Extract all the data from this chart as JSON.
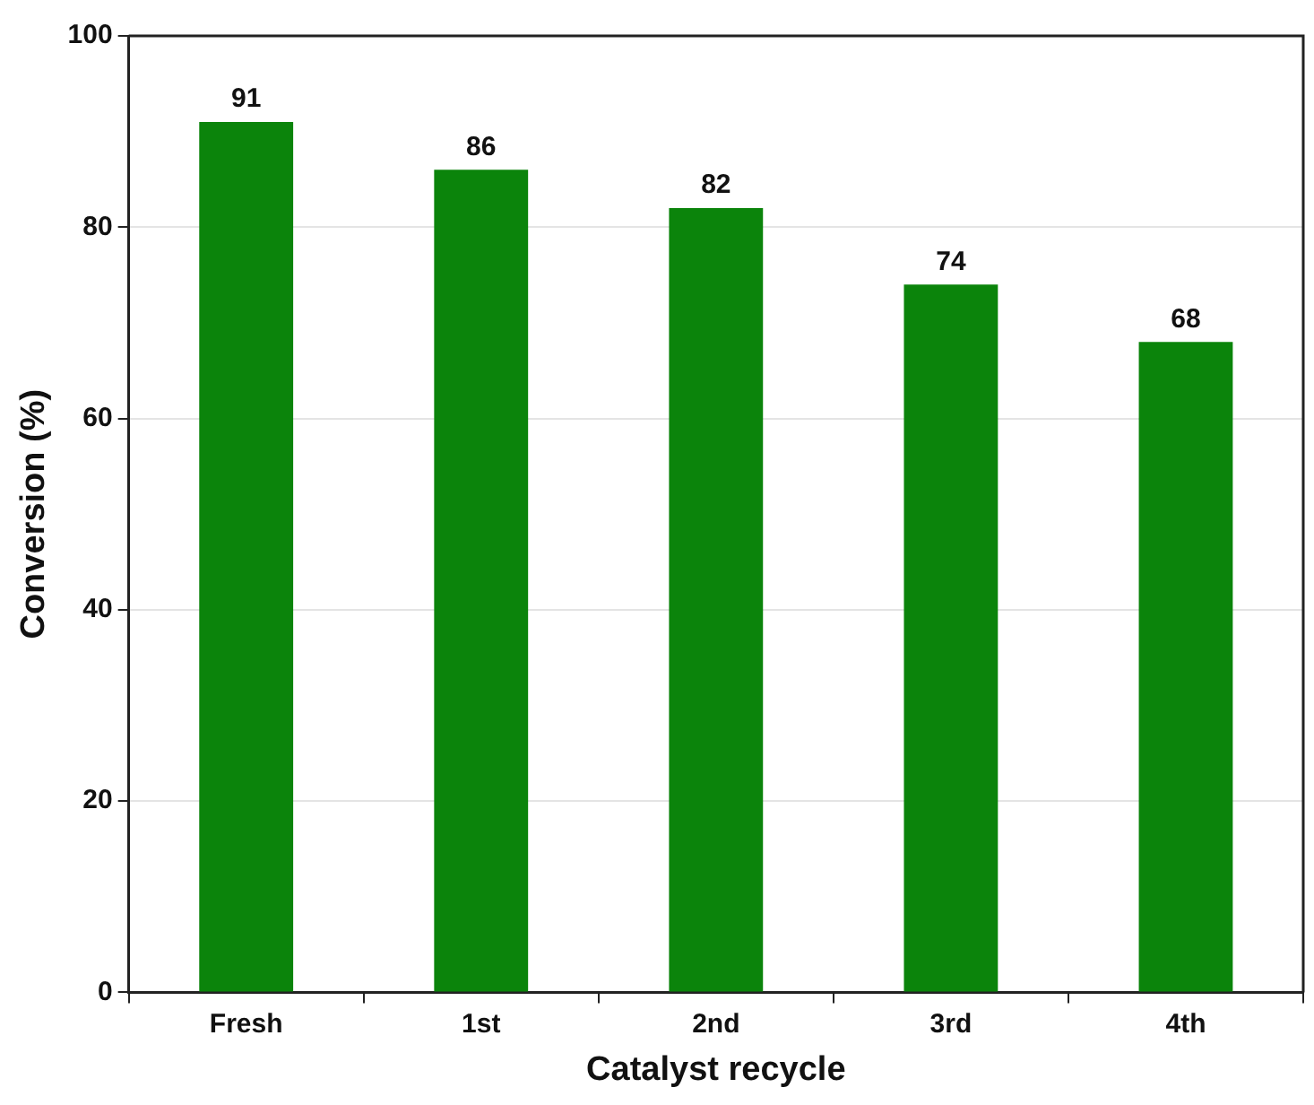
{
  "chart_data": {
    "type": "bar",
    "xlabel": "Catalyst recycle",
    "ylabel": "Conversion (%)",
    "categories": [
      "Fresh",
      "1st",
      "2nd",
      "3rd",
      "4th"
    ],
    "values": [
      91,
      86,
      82,
      74,
      68
    ],
    "color": "#0b840b",
    "ylim": [
      0,
      100
    ],
    "yticks": [
      0,
      20,
      40,
      60,
      80,
      100
    ],
    "grid": "y",
    "data_labels": true
  }
}
